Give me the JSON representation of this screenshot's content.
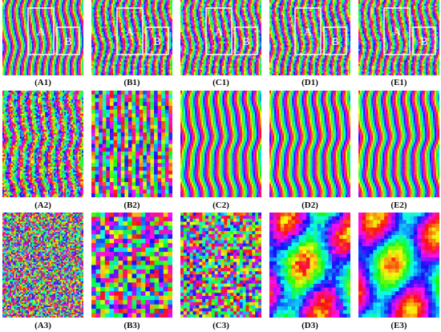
{
  "figure": {
    "rows": [
      {
        "panels": [
          {
            "label": "(A1)",
            "style": "fringe-rect",
            "region_tags": [
              "A",
              "B"
            ]
          },
          {
            "label": "(B1)",
            "style": "fringe-rect",
            "region_tags": [
              "A",
              "B"
            ]
          },
          {
            "label": "(C1)",
            "style": "fringe-rect",
            "region_tags": [
              "A",
              "B"
            ]
          },
          {
            "label": "(D1)",
            "style": "fringe-rect",
            "region_tags": [
              "A",
              "B"
            ]
          },
          {
            "label": "(E1)",
            "style": "fringe-rect",
            "region_tags": [
              "A",
              "B"
            ]
          }
        ]
      },
      {
        "panels": [
          {
            "label": "(A2)",
            "style": "fringe-noisy"
          },
          {
            "label": "(B2)",
            "style": "fringe-blocky"
          },
          {
            "label": "(C2)",
            "style": "fringe-clean"
          },
          {
            "label": "(D2)",
            "style": "fringe-clean"
          },
          {
            "label": "(E2)",
            "style": "fringe-clean"
          }
        ]
      },
      {
        "panels": [
          {
            "label": "(A3)",
            "style": "noise-fine"
          },
          {
            "label": "(B3)",
            "style": "noise-blocky"
          },
          {
            "label": "(C3)",
            "style": "noise-blocky-fine"
          },
          {
            "label": "(D3)",
            "style": "smooth-patches"
          },
          {
            "label": "(E3)",
            "style": "smooth-patches-blue"
          }
        ]
      }
    ]
  }
}
